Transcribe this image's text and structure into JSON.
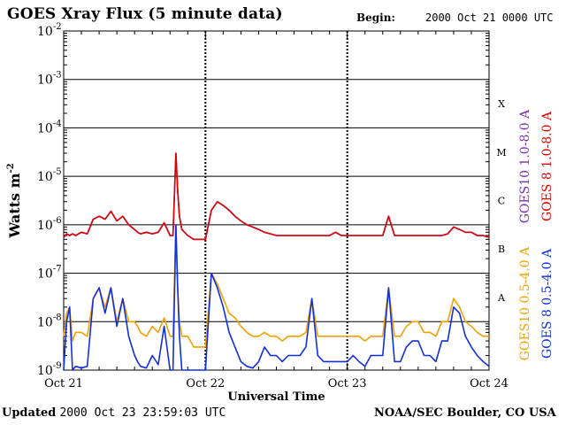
{
  "header": {
    "title": "GOES Xray Flux (5 minute data)",
    "begin_label": "Begin:",
    "begin_value": "2000 Oct 21 0000 UTC"
  },
  "footer": {
    "updated_label": "Updated",
    "updated_value": "2000 Oct 23 23:59:03 UTC",
    "source": "NOAA/SEC Boulder, CO USA"
  },
  "chart_data": {
    "type": "line",
    "title": "GOES Xray Flux (5 minute data)",
    "xlabel": "Universal Time",
    "ylabel": "Watts m",
    "ylabel_exponent": "-2",
    "yscale": "log",
    "ylim": [
      1e-09,
      0.01
    ],
    "xlim": [
      0,
      72
    ],
    "x_unit_note": "hours since 2000 Oct 21 0000 UTC",
    "x_ticks": [
      {
        "x": 0,
        "label": "Oct 21"
      },
      {
        "x": 24,
        "label": "Oct 22"
      },
      {
        "x": 48,
        "label": "Oct 23"
      },
      {
        "x": 72,
        "label": "Oct 24"
      }
    ],
    "y_ticks": [
      {
        "y": 1e-09,
        "base": "10",
        "exp": "-9"
      },
      {
        "y": 1e-08,
        "base": "10",
        "exp": "-8"
      },
      {
        "y": 1e-07,
        "base": "10",
        "exp": "-7"
      },
      {
        "y": 1e-06,
        "base": "10",
        "exp": "-6"
      },
      {
        "y": 1e-05,
        "base": "10",
        "exp": "-5"
      },
      {
        "y": 0.0001,
        "base": "10",
        "exp": "-4"
      },
      {
        "y": 0.001,
        "base": "10",
        "exp": "-3"
      },
      {
        "y": 0.01,
        "base": "10",
        "exp": "-2"
      }
    ],
    "class_labels": [
      {
        "label": "A",
        "y": 3.16e-08
      },
      {
        "label": "B",
        "y": 3.16e-07
      },
      {
        "label": "C",
        "y": 3.16e-06
      },
      {
        "label": "M",
        "y": 3.16e-05
      },
      {
        "label": "X",
        "y": 0.000316
      }
    ],
    "grid": {
      "horizontal": true,
      "dashed_verticals_at_days": true
    },
    "legend_placement": "right",
    "series": [
      {
        "name": "GOES10 1.0-8.0 A",
        "color": "#7b2fb0",
        "x": [
          0,
          0.5,
          1,
          1.5,
          2,
          3,
          4,
          5,
          6,
          7,
          8,
          9,
          10,
          11,
          12,
          12.5,
          13,
          14,
          15,
          16,
          17,
          18,
          18.5,
          19,
          19.3,
          19.6,
          20,
          21,
          22,
          23,
          24,
          25,
          26,
          27,
          28,
          29,
          30,
          31,
          32,
          33,
          34,
          35,
          36,
          37,
          38,
          39,
          40,
          41,
          42,
          43,
          44,
          45,
          46,
          47,
          48,
          49,
          50,
          51,
          52,
          53,
          54,
          55,
          56,
          57,
          58,
          59,
          60,
          61,
          62,
          63,
          64,
          65,
          66,
          67,
          68,
          69,
          70,
          71,
          72
        ],
        "y": [
          5.5e-07,
          6.5e-07,
          6e-07,
          6.5e-07,
          6e-07,
          7e-07,
          6.5e-07,
          1.3e-06,
          1.5e-06,
          1.3e-06,
          1.9e-06,
          1.2e-06,
          1.5e-06,
          1e-06,
          8e-07,
          7e-07,
          6.5e-07,
          7e-07,
          6.5e-07,
          7e-07,
          1.1e-06,
          6e-07,
          6e-07,
          3e-05,
          5e-06,
          1.5e-06,
          8e-07,
          6e-07,
          5e-07,
          5e-07,
          5e-07,
          2e-06,
          3e-06,
          2.5e-06,
          2e-06,
          1.5e-06,
          1.2e-06,
          1e-06,
          9e-07,
          8e-07,
          7e-07,
          6.5e-07,
          6e-07,
          6e-07,
          6e-07,
          6e-07,
          6e-07,
          6e-07,
          6e-07,
          6e-07,
          6e-07,
          6e-07,
          7e-07,
          6e-07,
          6e-07,
          6e-07,
          6e-07,
          6e-07,
          6e-07,
          6e-07,
          6e-07,
          1.5e-06,
          6e-07,
          6e-07,
          6e-07,
          6e-07,
          6e-07,
          6e-07,
          6e-07,
          6e-07,
          6e-07,
          6.5e-07,
          9e-07,
          8e-07,
          7e-07,
          7e-07,
          6e-07,
          6e-07,
          5.5e-07
        ]
      },
      {
        "name": "GOES 8 1.0-8.0 A",
        "color": "#dd0000",
        "x": [
          0,
          0.5,
          1,
          1.5,
          2,
          3,
          4,
          5,
          6,
          7,
          8,
          9,
          10,
          11,
          12,
          12.5,
          13,
          14,
          15,
          16,
          17,
          18,
          18.5,
          19,
          19.3,
          19.6,
          20,
          21,
          22,
          23,
          24,
          25,
          26,
          27,
          28,
          29,
          30,
          31,
          32,
          33,
          34,
          35,
          36,
          37,
          38,
          39,
          40,
          41,
          42,
          43,
          44,
          45,
          46,
          47,
          48,
          49,
          50,
          51,
          52,
          53,
          54,
          55,
          56,
          57,
          58,
          59,
          60,
          61,
          62,
          63,
          64,
          65,
          66,
          67,
          68,
          69,
          70,
          71,
          72
        ],
        "y": [
          5.5e-07,
          6.5e-07,
          6e-07,
          6.5e-07,
          6e-07,
          7e-07,
          6.5e-07,
          1.3e-06,
          1.5e-06,
          1.3e-06,
          1.9e-06,
          1.2e-06,
          1.5e-06,
          1e-06,
          8e-07,
          7e-07,
          6.5e-07,
          7e-07,
          6.5e-07,
          7e-07,
          1.1e-06,
          6e-07,
          6e-07,
          3e-05,
          5e-06,
          1.5e-06,
          8e-07,
          6e-07,
          5e-07,
          5e-07,
          5e-07,
          2e-06,
          3e-06,
          2.5e-06,
          2e-06,
          1.5e-06,
          1.2e-06,
          1e-06,
          9e-07,
          8e-07,
          7e-07,
          6.5e-07,
          6e-07,
          6e-07,
          6e-07,
          6e-07,
          6e-07,
          6e-07,
          6e-07,
          6e-07,
          6e-07,
          6e-07,
          7e-07,
          6e-07,
          6e-07,
          6e-07,
          6e-07,
          6e-07,
          6e-07,
          6e-07,
          6e-07,
          1.5e-06,
          6e-07,
          6e-07,
          6e-07,
          6e-07,
          6e-07,
          6e-07,
          6e-07,
          6e-07,
          6e-07,
          6.5e-07,
          9e-07,
          8e-07,
          7e-07,
          7e-07,
          6e-07,
          6e-07,
          5.5e-07
        ]
      },
      {
        "name": "GOES10 0.5-4.0 A",
        "color": "#f5a000",
        "x": [
          0,
          0.5,
          1,
          1.5,
          2,
          3,
          4,
          5,
          6,
          7,
          8,
          9,
          10,
          11,
          12,
          12.5,
          13,
          14,
          15,
          16,
          17,
          18,
          18.5,
          19,
          19.3,
          19.6,
          20,
          21,
          22,
          23,
          24,
          25,
          26,
          27,
          28,
          29,
          30,
          31,
          32,
          33,
          34,
          35,
          36,
          37,
          38,
          39,
          40,
          41,
          42,
          43,
          44,
          45,
          46,
          47,
          48,
          49,
          50,
          51,
          52,
          53,
          54,
          55,
          56,
          57,
          58,
          59,
          60,
          61,
          62,
          63,
          64,
          65,
          66,
          67,
          68,
          69,
          70,
          71,
          72
        ],
        "y": [
          5e-09,
          1.5e-08,
          2e-08,
          4e-09,
          6e-09,
          6e-09,
          5e-09,
          3e-08,
          5e-08,
          2e-08,
          5e-08,
          1e-08,
          3e-08,
          1e-08,
          1e-08,
          8e-09,
          6e-09,
          5e-09,
          8e-09,
          6e-09,
          1.2e-08,
          5e-09,
          5e-09,
          1e-06,
          5e-08,
          1e-08,
          5e-09,
          5e-09,
          3e-09,
          3e-09,
          3e-09,
          1e-07,
          6e-08,
          3e-08,
          1.5e-08,
          1.2e-08,
          8e-09,
          6e-09,
          5e-09,
          5e-09,
          6e-09,
          5e-09,
          5e-09,
          4e-09,
          5e-09,
          5e-09,
          5e-09,
          6e-09,
          3e-08,
          5e-09,
          5e-09,
          5e-09,
          5e-09,
          5e-09,
          5e-09,
          5e-09,
          5e-09,
          4e-09,
          5e-09,
          5e-09,
          5e-09,
          5e-08,
          5e-09,
          5e-09,
          8e-09,
          1e-08,
          1e-08,
          6e-09,
          6e-09,
          5e-09,
          1e-08,
          1e-08,
          3e-08,
          2e-08,
          1e-08,
          8e-09,
          6e-09,
          5e-09,
          5e-09
        ]
      },
      {
        "name": "GOES 8 0.5-4.0 A",
        "color": "#1030e0",
        "x": [
          0,
          0.5,
          1,
          1.5,
          2,
          3,
          4,
          5,
          6,
          7,
          8,
          9,
          10,
          11,
          12,
          12.5,
          13,
          14,
          15,
          16,
          17,
          18,
          18.5,
          19,
          19.3,
          19.6,
          20,
          21,
          22,
          23,
          24,
          25,
          26,
          27,
          28,
          29,
          30,
          31,
          32,
          33,
          34,
          35,
          36,
          37,
          38,
          39,
          40,
          41,
          42,
          43,
          44,
          45,
          46,
          47,
          48,
          49,
          50,
          51,
          52,
          53,
          54,
          55,
          56,
          57,
          58,
          59,
          60,
          61,
          62,
          63,
          64,
          65,
          66,
          67,
          68,
          69,
          70,
          71,
          72
        ],
        "y": [
          1e-09,
          1e-08,
          2e-08,
          1e-09,
          1.2e-09,
          1.1e-09,
          1.2e-09,
          3e-08,
          5e-08,
          1.5e-08,
          5e-08,
          8e-09,
          3e-08,
          5e-09,
          2e-09,
          1.5e-09,
          1.2e-09,
          1.1e-09,
          2e-09,
          1.3e-09,
          8e-09,
          1e-09,
          1e-09,
          1e-06,
          5e-08,
          5e-09,
          1e-09,
          1e-09,
          1e-09,
          1e-09,
          1e-09,
          1e-07,
          5e-08,
          2e-08,
          6e-09,
          3e-09,
          1.5e-09,
          1.2e-09,
          1.1e-09,
          1.5e-09,
          3e-09,
          2e-09,
          2e-09,
          1.5e-09,
          2e-09,
          2e-09,
          2e-09,
          3e-09,
          3e-08,
          2e-09,
          1.5e-09,
          1.5e-09,
          1.5e-09,
          1.5e-09,
          1.5e-09,
          2e-09,
          1.5e-09,
          1.2e-09,
          2e-09,
          2e-09,
          2e-09,
          5e-08,
          1.5e-09,
          1.5e-09,
          3e-09,
          4e-09,
          4e-09,
          2e-09,
          2e-09,
          1.5e-09,
          4e-09,
          4e-09,
          2e-08,
          1.5e-08,
          5e-09,
          3e-09,
          2e-09,
          1.5e-09,
          1.2e-09
        ]
      }
    ]
  }
}
